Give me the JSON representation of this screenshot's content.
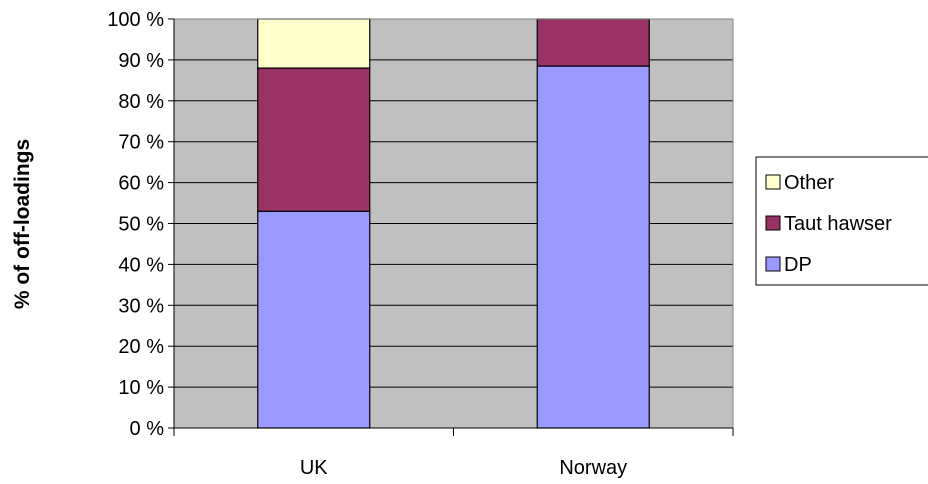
{
  "chart_data": {
    "type": "bar",
    "stacked": true,
    "title": "",
    "xlabel": "",
    "ylabel": "% of off-loadings",
    "ylim": [
      0,
      100
    ],
    "y_ticks": [
      0,
      10,
      20,
      30,
      40,
      50,
      60,
      70,
      80,
      90,
      100
    ],
    "y_tick_labels": [
      "0 %",
      "10 %",
      "20 %",
      "30 %",
      "40 %",
      "50 %",
      "60 %",
      "70 %",
      "80 %",
      "90 %",
      "100 %"
    ],
    "categories": [
      "UK",
      "Norway"
    ],
    "series": [
      {
        "name": "DP",
        "values": [
          53,
          88.5
        ],
        "color": "#9999ff"
      },
      {
        "name": "Taut hawser",
        "values": [
          35,
          11.5
        ],
        "color": "#993366"
      },
      {
        "name": "Other",
        "values": [
          12,
          0
        ],
        "color": "#ffffcc"
      }
    ],
    "legend_order": [
      "Other",
      "Taut hawser",
      "DP"
    ],
    "legend_position": "right",
    "plot_background": "#c0c0c0",
    "grid": true
  }
}
